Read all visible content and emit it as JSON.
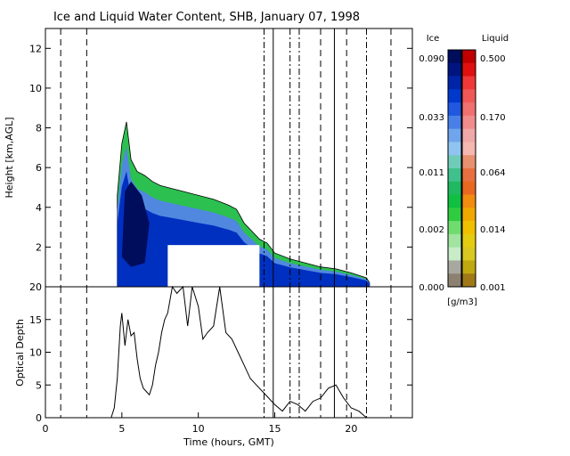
{
  "chart_data": [
    {
      "type": "heatmap",
      "title": "Ice and Liquid Water Content, SHB, January 07, 1998",
      "xlim": [
        0,
        24
      ],
      "ylim": [
        0,
        13
      ],
      "ylabel": "Height [km,AGL]",
      "y_ticks": [
        2,
        4,
        6,
        8,
        10,
        12
      ],
      "cloud_profile": {
        "time": [
          4.7,
          5.0,
          5.3,
          5.6,
          6.0,
          6.5,
          7.0,
          7.5,
          8.0,
          9.0,
          10.0,
          11.0,
          12.0,
          12.5,
          13.0,
          13.5,
          14.0,
          14.5,
          15.0,
          16.0,
          17.0,
          18.0,
          19.0,
          20.0,
          21.0,
          21.2
        ],
        "top_km": [
          4.6,
          7.2,
          8.3,
          6.4,
          5.8,
          5.6,
          5.3,
          5.1,
          5.0,
          4.8,
          4.6,
          4.4,
          4.1,
          3.9,
          3.2,
          2.8,
          2.4,
          2.2,
          1.7,
          1.4,
          1.2,
          1.0,
          0.9,
          0.7,
          0.45,
          0.2
        ]
      },
      "vertical_lines": [
        {
          "time": 1.0,
          "style": "dashed"
        },
        {
          "time": 2.7,
          "style": "dashed"
        },
        {
          "time": 14.3,
          "style": "dashdot"
        },
        {
          "time": 14.9,
          "style": "solid"
        },
        {
          "time": 16.0,
          "style": "dashdot"
        },
        {
          "time": 16.6,
          "style": "dashdot"
        },
        {
          "time": 18.0,
          "style": "dashed"
        },
        {
          "time": 18.9,
          "style": "solid"
        },
        {
          "time": 19.7,
          "style": "dashed"
        },
        {
          "time": 21.0,
          "style": "dashdot"
        },
        {
          "time": 22.6,
          "style": "dashed"
        }
      ]
    },
    {
      "type": "line",
      "xlabel": "Time (hours, GMT)",
      "ylabel": "Optical Depth",
      "xlim": [
        0,
        24
      ],
      "ylim": [
        0,
        20
      ],
      "x_ticks": [
        0,
        5,
        10,
        15,
        20
      ],
      "y_ticks": [
        0,
        5,
        10,
        15,
        20
      ],
      "x": [
        4.3,
        4.5,
        4.7,
        4.9,
        5.0,
        5.2,
        5.4,
        5.6,
        5.8,
        6.0,
        6.2,
        6.4,
        6.6,
        6.8,
        7.0,
        7.2,
        7.4,
        7.6,
        7.8,
        8.0,
        8.3,
        8.6,
        9.0,
        9.3,
        9.6,
        10.0,
        10.3,
        10.6,
        11.0,
        11.4,
        11.8,
        12.2,
        12.6,
        13.0,
        13.4,
        13.8,
        14.2,
        14.6,
        15.0,
        15.5,
        16.0,
        16.5,
        17.0,
        17.5,
        18.0,
        18.5,
        19.0,
        19.5,
        20.0,
        20.5,
        21.0
      ],
      "y": [
        0,
        1.5,
        6,
        14,
        16,
        11,
        15,
        12.5,
        13,
        9,
        6,
        4.5,
        4,
        3.5,
        5,
        8,
        10,
        13,
        15,
        16,
        20,
        19,
        20,
        14,
        20,
        17,
        12,
        13,
        14,
        20,
        13,
        12,
        10,
        8,
        6,
        5,
        4,
        3,
        2,
        1,
        2.5,
        2,
        1,
        2.5,
        3,
        4.5,
        5,
        3,
        1.5,
        1,
        0
      ]
    },
    {
      "type": "table",
      "legend": {
        "units": "[g/m3]",
        "ice_label": "Ice",
        "liquid_label": "Liquid",
        "ice_ticks": [
          "0.090",
          "0.033",
          "0.011",
          "0.002",
          "0.000"
        ],
        "liquid_ticks": [
          "0.500",
          "0.170",
          "0.064",
          "0.014",
          "0.001"
        ],
        "ice_colors": [
          "#000c5c",
          "#001480",
          "#0024a8",
          "#0038cc",
          "#2058e0",
          "#4880e8",
          "#70a4ec",
          "#90c4f0",
          "#70ccb8",
          "#40c08c",
          "#20b860",
          "#10c040",
          "#30cc40",
          "#70dc70",
          "#a0e4a0",
          "#c8ecc8",
          "#a8a8a0",
          "#8c8070"
        ],
        "liquid_colors": [
          "#c00000",
          "#e01010",
          "#f03838",
          "#f05858",
          "#f07070",
          "#f08c8c",
          "#f0a8a8",
          "#f4b8b0",
          "#e89070",
          "#e87040",
          "#e86820",
          "#f08c10",
          "#f0a800",
          "#f0c000",
          "#e4cc10",
          "#d8c820",
          "#c0a810",
          "#a07818"
        ]
      },
      "colors": {
        "ice_core": "#000c5c",
        "ice_mid": "#0030c0",
        "ice_light": "#5088e0",
        "ice_edge": "#2cc050"
      }
    }
  ]
}
